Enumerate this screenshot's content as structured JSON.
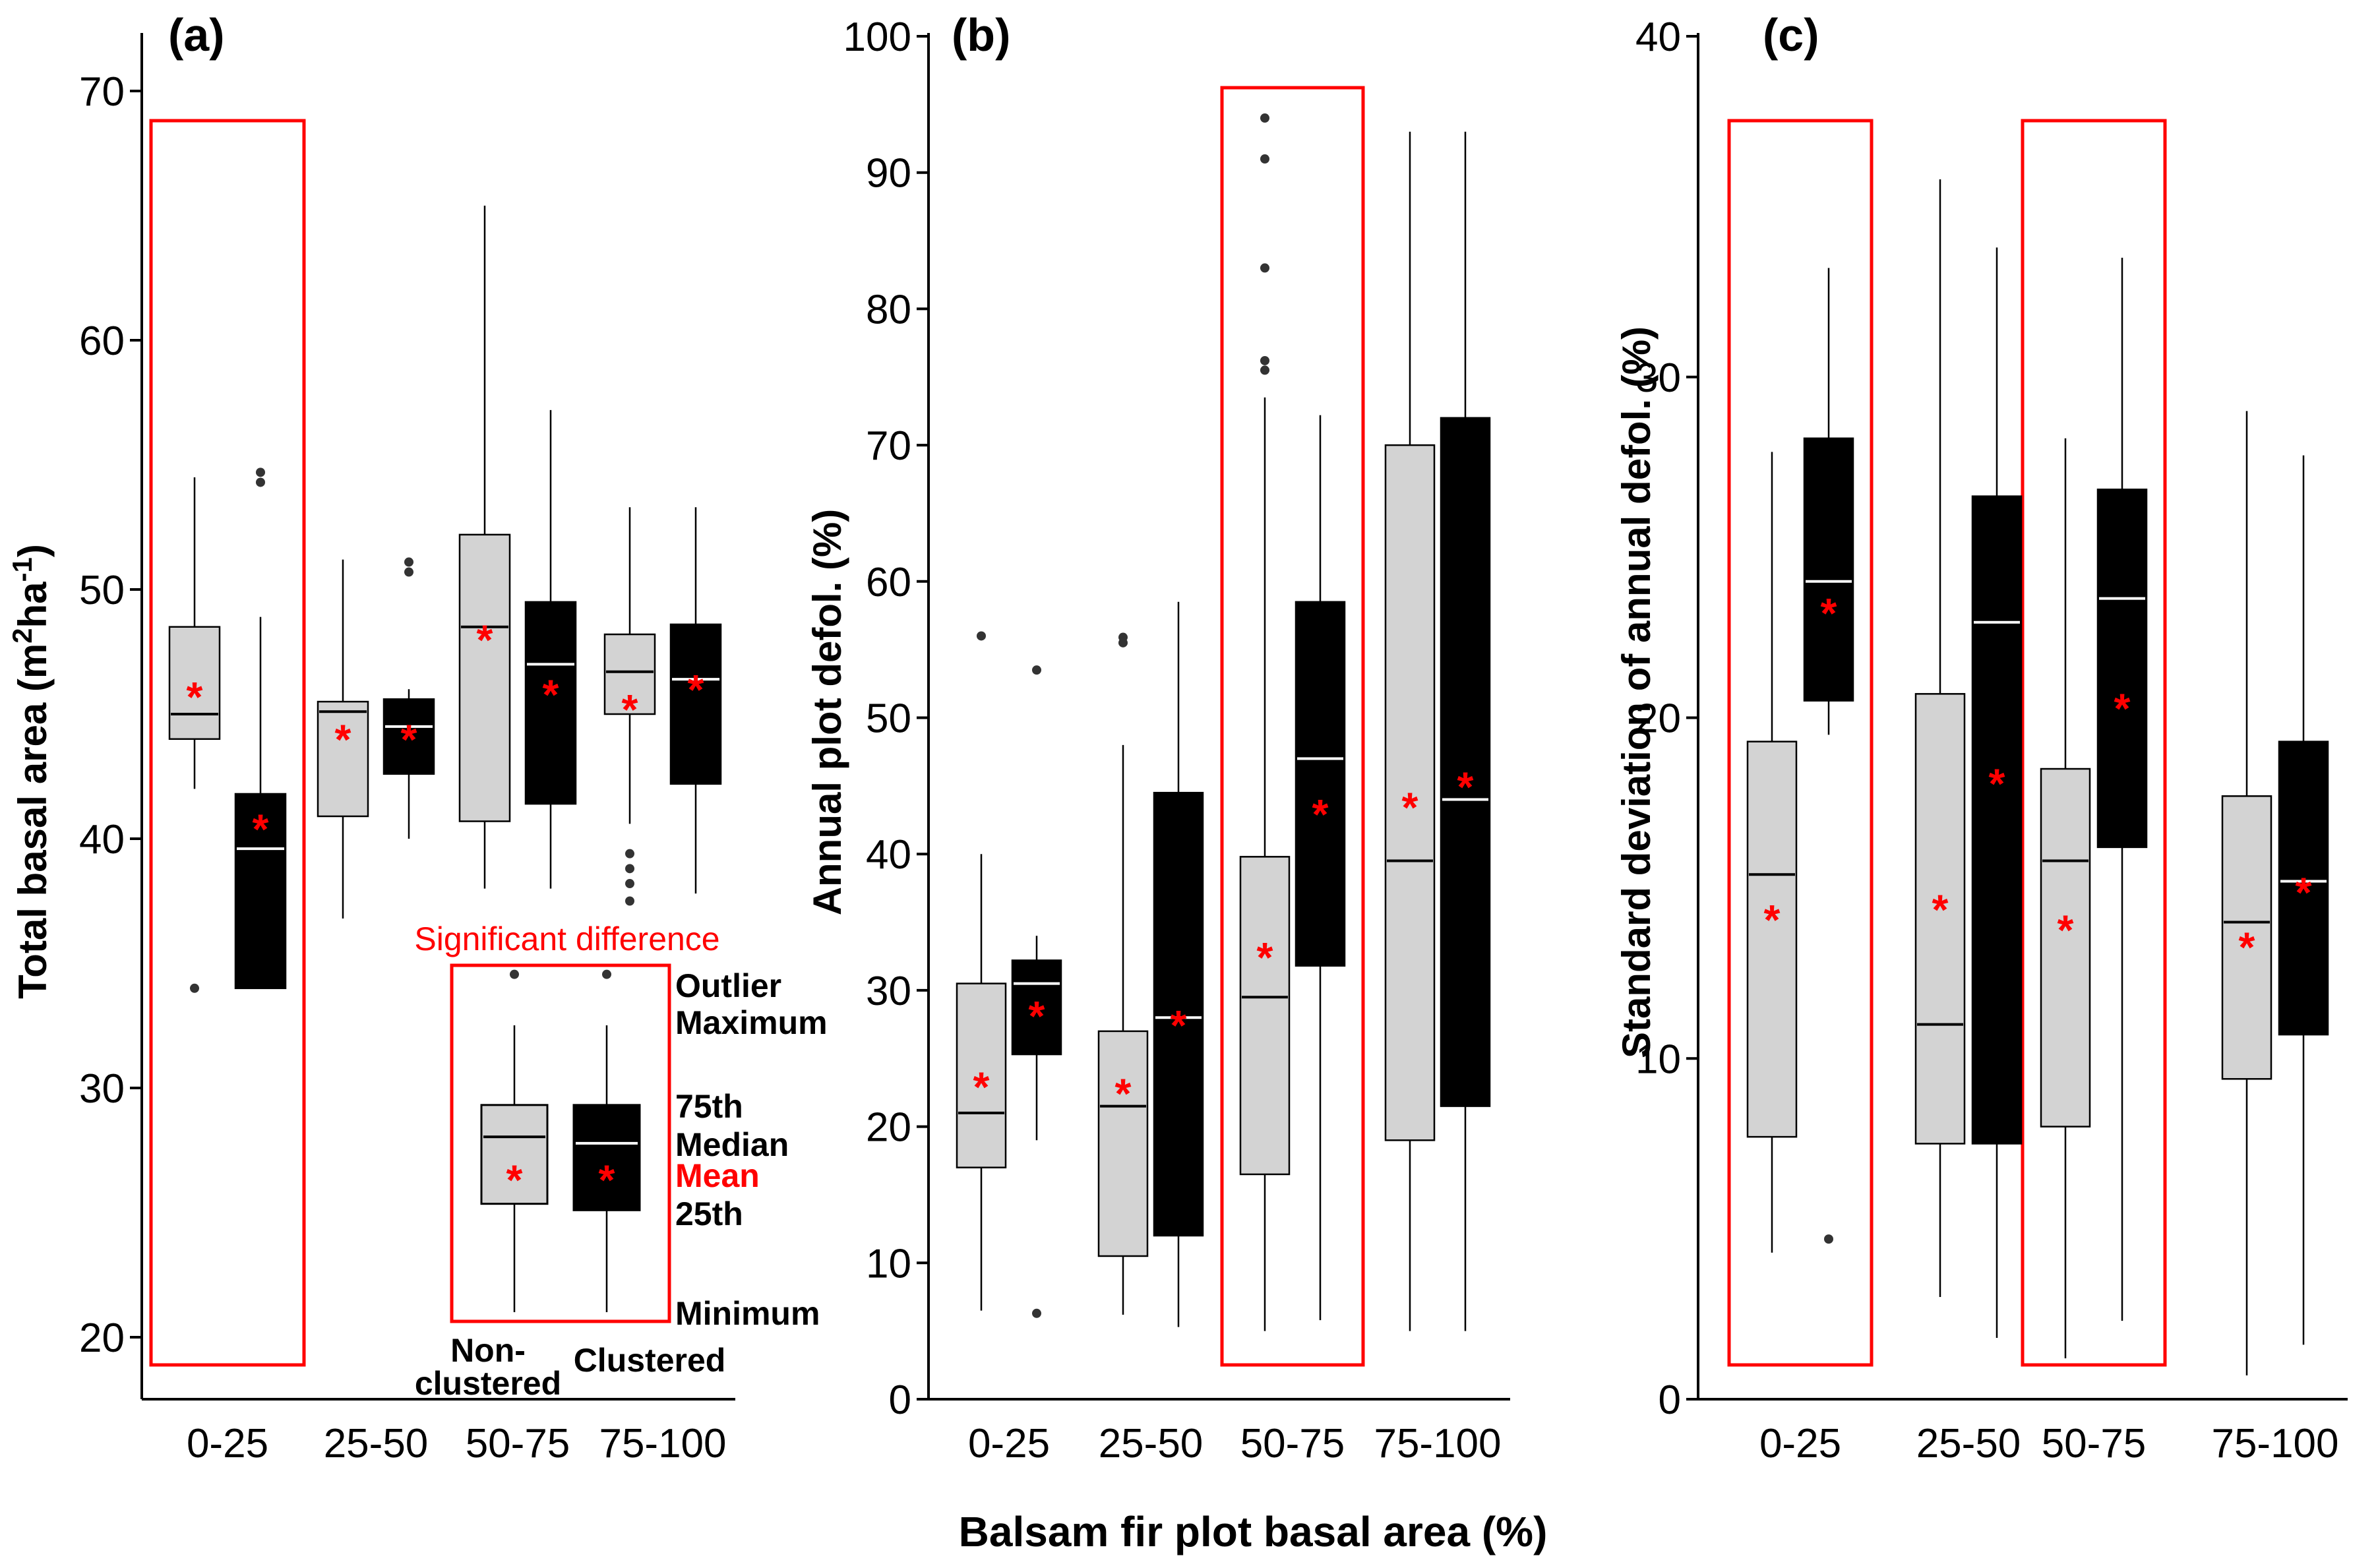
{
  "figure": {
    "xlabel": "Balsam fir plot basal area (%)",
    "colors": {
      "nonclustered": "#d3d3d3",
      "clustered": "#000000",
      "mean": "#ff0000",
      "highlight": "#ff0000"
    }
  },
  "legend": {
    "significant": "Significant difference",
    "outlier": "Outlier",
    "maximum": "Maximum",
    "q75": "75th",
    "median": "Median",
    "mean": "Mean",
    "q25": "25th",
    "minimum": "Minimum",
    "nonclustered_l1": "Non-",
    "nonclustered_l2": "clustered",
    "clustered": "Clustered",
    "example_nonclustered": {
      "min": 0.5,
      "q1": 2.2,
      "median": 3.25,
      "q3": 3.75,
      "max": 5.0,
      "mean": 2.7,
      "outliers": [
        5.8
      ]
    },
    "example_clustered": {
      "min": 0.5,
      "q1": 2.1,
      "median": 3.15,
      "q3": 3.75,
      "max": 5.0,
      "mean": 2.7,
      "outliers": [
        5.8
      ]
    }
  },
  "chart_data": [
    {
      "type": "box",
      "panel": "(a)",
      "ylabel": "Total basal area (m",
      "ylabel_sup1": "2",
      "ylabel_mid": "ha",
      "ylabel_sup2": "-1",
      "ylabel_end": ")",
      "ylim": [
        18,
        72
      ],
      "yticks": [
        "20",
        "30",
        "40",
        "50",
        "60",
        "70"
      ],
      "categories": [
        "0-25",
        "25-50",
        "50-75",
        "75-100"
      ],
      "highlight": [
        "0-25"
      ],
      "series": [
        {
          "name": "Non-clustered",
          "boxes": [
            {
              "min": 42.0,
              "q1": 44.0,
              "median": 45.0,
              "q3": 48.5,
              "max": 54.5,
              "mean": 46.0,
              "outliers": [
                34.0
              ]
            },
            {
              "min": 36.8,
              "q1": 40.9,
              "median": 45.1,
              "q3": 45.5,
              "max": 51.2,
              "mean": 44.3,
              "outliers": []
            },
            {
              "min": 38.0,
              "q1": 40.7,
              "median": 48.5,
              "q3": 52.2,
              "max": 65.4,
              "mean": 48.3,
              "outliers": []
            },
            {
              "min": 40.6,
              "q1": 45.0,
              "median": 46.7,
              "q3": 48.2,
              "max": 53.3,
              "mean": 45.5,
              "outliers": [
                37.5,
                38.2,
                38.8,
                39.4
              ]
            }
          ]
        },
        {
          "name": "Clustered",
          "boxes": [
            {
              "min": 34.0,
              "q1": 34.0,
              "median": 39.6,
              "q3": 41.8,
              "max": 48.9,
              "mean": 40.7,
              "outliers": [
                54.3,
                54.7
              ]
            },
            {
              "min": 40.0,
              "q1": 42.6,
              "median": 44.5,
              "q3": 45.6,
              "max": 46.0,
              "mean": 44.3,
              "outliers": [
                50.7,
                51.1
              ]
            },
            {
              "min": 38.0,
              "q1": 41.4,
              "median": 47.0,
              "q3": 49.5,
              "max": 57.2,
              "mean": 46.1,
              "outliers": []
            },
            {
              "min": 37.8,
              "q1": 42.2,
              "median": 46.4,
              "q3": 48.6,
              "max": 53.3,
              "mean": 46.3,
              "outliers": []
            }
          ]
        }
      ]
    },
    {
      "type": "box",
      "panel": "(b)",
      "ylabel": "Annual plot defol. (%)",
      "ylim": [
        0,
        100
      ],
      "yticks": [
        "0",
        "10",
        "20",
        "30",
        "40",
        "50",
        "60",
        "70",
        "80",
        "90",
        "100"
      ],
      "categories": [
        "0-25",
        "25-50",
        "50-75",
        "75-100"
      ],
      "highlight": [
        "50-75"
      ],
      "series": [
        {
          "name": "Non-clustered",
          "boxes": [
            {
              "min": 6.5,
              "q1": 17.0,
              "median": 21.0,
              "q3": 30.5,
              "max": 40.0,
              "mean": 23.5,
              "outliers": [
                56.0
              ]
            },
            {
              "min": 6.2,
              "q1": 10.5,
              "median": 21.5,
              "q3": 27.0,
              "max": 48.0,
              "mean": 23.0,
              "outliers": [
                55.5,
                55.9
              ]
            },
            {
              "min": 5.0,
              "q1": 16.5,
              "median": 29.5,
              "q3": 39.8,
              "max": 73.5,
              "mean": 33.0,
              "outliers": [
                75.5,
                76.2,
                83.0,
                91.0,
                94.0
              ]
            },
            {
              "min": 5.0,
              "q1": 19.0,
              "median": 39.5,
              "q3": 70.0,
              "max": 93.0,
              "mean": 44.0,
              "outliers": []
            }
          ]
        },
        {
          "name": "Clustered",
          "boxes": [
            {
              "min": 19.0,
              "q1": 25.3,
              "median": 30.5,
              "q3": 32.2,
              "max": 34.0,
              "mean": 28.7,
              "outliers": [
                6.3,
                53.5
              ]
            },
            {
              "min": 5.3,
              "q1": 12.0,
              "median": 28.0,
              "q3": 44.5,
              "max": 58.5,
              "mean": 28.0,
              "outliers": []
            },
            {
              "min": 5.8,
              "q1": 31.8,
              "median": 47.0,
              "q3": 58.5,
              "max": 72.2,
              "mean": 43.5,
              "outliers": []
            },
            {
              "min": 5.0,
              "q1": 21.5,
              "median": 44.0,
              "q3": 72.0,
              "max": 93.0,
              "mean": 45.5,
              "outliers": []
            }
          ]
        }
      ]
    },
    {
      "type": "box",
      "panel": "(c)",
      "ylabel": "Standard deviation of annual defol. (%)",
      "ylim": [
        0,
        40
      ],
      "yticks": [
        "0",
        "10",
        "20",
        "30",
        "40"
      ],
      "categories": [
        "0-25",
        "25-50",
        "50-75",
        "75-100"
      ],
      "highlight": [
        "0-25",
        "50-75"
      ],
      "series": [
        {
          "name": "Non-clustered",
          "boxes": [
            {
              "min": 4.3,
              "q1": 7.7,
              "median": 15.4,
              "q3": 19.3,
              "max": 27.8,
              "mean": 14.3,
              "outliers": []
            },
            {
              "min": 3.0,
              "q1": 7.5,
              "median": 11.0,
              "q3": 20.7,
              "max": 35.8,
              "mean": 14.6,
              "outliers": []
            },
            {
              "min": 1.2,
              "q1": 8.0,
              "median": 15.8,
              "q3": 18.5,
              "max": 28.2,
              "mean": 14.0,
              "outliers": []
            },
            {
              "min": 0.7,
              "q1": 9.4,
              "median": 14.0,
              "q3": 17.7,
              "max": 29.0,
              "mean": 13.5,
              "outliers": []
            }
          ]
        },
        {
          "name": "Clustered",
          "boxes": [
            {
              "min": 19.5,
              "q1": 20.5,
              "median": 24.0,
              "q3": 28.2,
              "max": 33.2,
              "mean": 23.3,
              "outliers": [
                4.7
              ]
            },
            {
              "min": 1.8,
              "q1": 7.5,
              "median": 22.8,
              "q3": 26.5,
              "max": 33.8,
              "mean": 18.3,
              "outliers": []
            },
            {
              "min": 2.3,
              "q1": 16.2,
              "median": 23.5,
              "q3": 26.7,
              "max": 33.5,
              "mean": 20.5,
              "outliers": []
            },
            {
              "min": 1.6,
              "q1": 10.7,
              "median": 15.2,
              "q3": 19.3,
              "max": 27.7,
              "mean": 15.1,
              "outliers": []
            }
          ]
        }
      ]
    }
  ]
}
